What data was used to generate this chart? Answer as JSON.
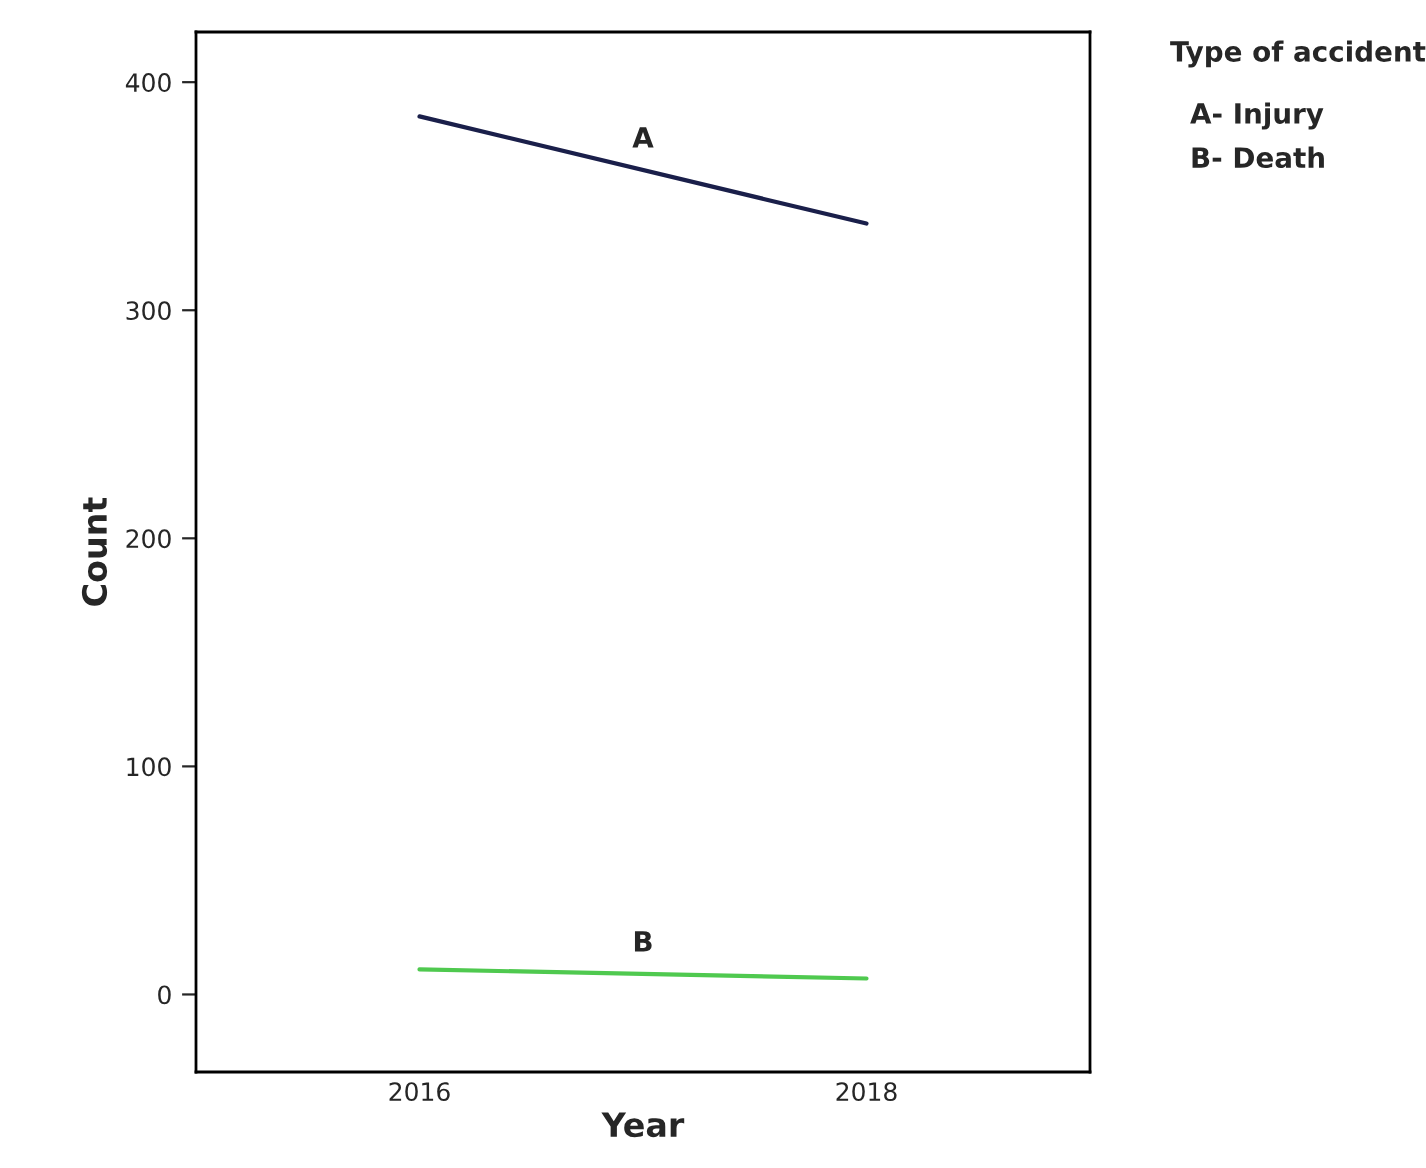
{
  "chart_data": {
    "type": "line",
    "xlabel": "Year",
    "ylabel": "Count",
    "legend_title": "Type of accident",
    "x": [
      2016,
      2018
    ],
    "series": [
      {
        "name": "A",
        "color": "#1a1f4a",
        "values": [
          385,
          338
        ]
      },
      {
        "name": "B",
        "color": "#4fc94f",
        "values": [
          11,
          7
        ]
      }
    ],
    "annotations": [
      "A- Injury",
      "B- Death"
    ],
    "xlim": [
      2015,
      2019
    ],
    "xticks": [
      2016,
      2018
    ],
    "ylim": [
      -34,
      422
    ],
    "yticks": [
      0,
      100,
      200,
      300,
      400
    ],
    "grid": false,
    "legend": false,
    "marker": "none",
    "line_style": "solid"
  }
}
